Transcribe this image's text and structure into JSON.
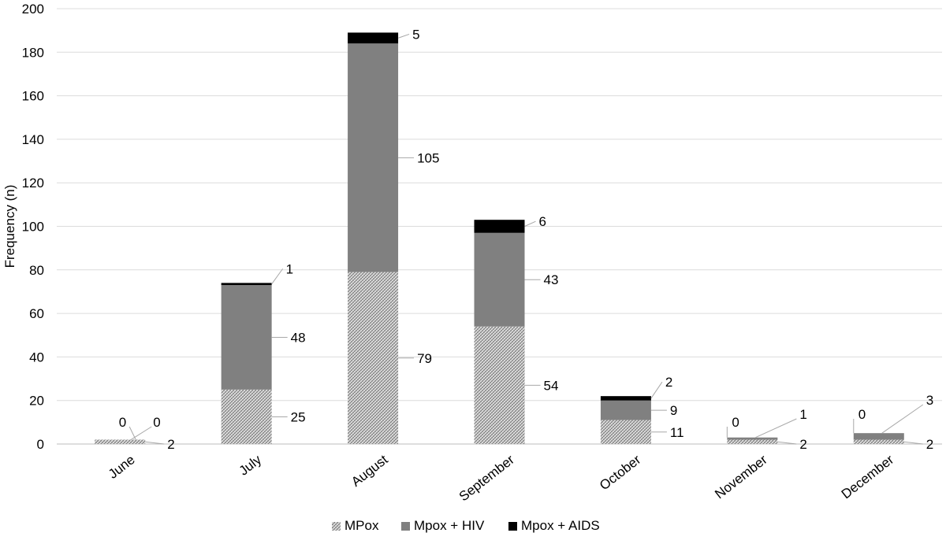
{
  "chart_data": {
    "type": "bar",
    "stacked": true,
    "title": "",
    "xlabel": "",
    "ylabel": "Frequency (n)",
    "ylim": [
      0,
      200
    ],
    "yticks": [
      "0",
      "20",
      "40",
      "60",
      "80",
      "100",
      "120",
      "140",
      "160",
      "180",
      "200"
    ],
    "categories": [
      "June",
      "July",
      "August",
      "September",
      "October",
      "November",
      "December"
    ],
    "series": [
      {
        "name": "MPox",
        "values": [
          2,
          25,
          79,
          54,
          11,
          2,
          2
        ],
        "color": "#c8c8c8",
        "pattern": "crosshatch"
      },
      {
        "name": "Mpox + HIV",
        "values": [
          0,
          48,
          105,
          43,
          9,
          1,
          3
        ],
        "color": "#808080"
      },
      {
        "name": "Mpox + AIDS",
        "values": [
          0,
          1,
          5,
          6,
          2,
          0,
          0
        ],
        "color": "#000000"
      }
    ],
    "grid": true,
    "legend_position": "bottom"
  }
}
